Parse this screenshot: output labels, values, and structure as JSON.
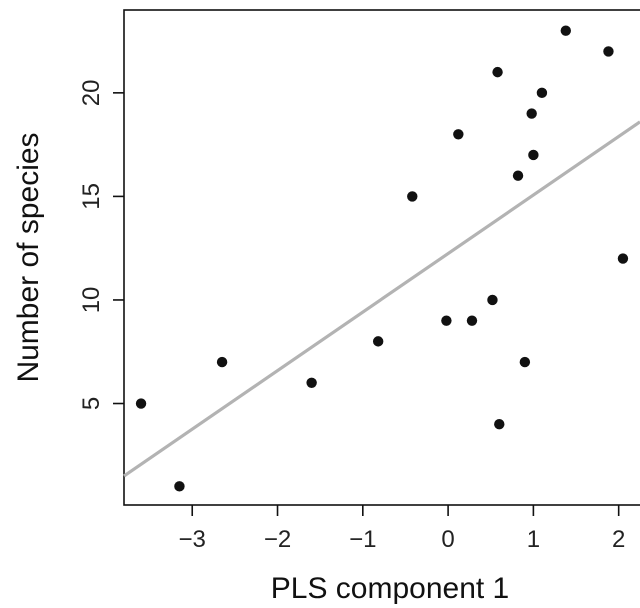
{
  "chart_data": {
    "type": "scatter",
    "title": "",
    "xlabel": "PLS component 1",
    "ylabel": "Number of species",
    "xlim": [
      -3.8,
      2.25
    ],
    "ylim": [
      0.1,
      24
    ],
    "x_ticks": [
      -3,
      -2,
      -1,
      0,
      1,
      2
    ],
    "x_tick_labels": [
      "−3",
      "−2",
      "−1",
      "0",
      "1",
      "2"
    ],
    "y_ticks": [
      5,
      10,
      15,
      20
    ],
    "y_tick_labels": [
      "5",
      "10",
      "15",
      "20"
    ],
    "grid": false,
    "point_color": "#111111",
    "points": [
      {
        "x": -3.6,
        "y": 5
      },
      {
        "x": -3.15,
        "y": 1
      },
      {
        "x": -2.65,
        "y": 7
      },
      {
        "x": -1.6,
        "y": 6
      },
      {
        "x": -0.82,
        "y": 8
      },
      {
        "x": -0.42,
        "y": 15
      },
      {
        "x": -0.02,
        "y": 9
      },
      {
        "x": 0.12,
        "y": 18
      },
      {
        "x": 0.28,
        "y": 9
      },
      {
        "x": 0.52,
        "y": 10
      },
      {
        "x": 0.58,
        "y": 21
      },
      {
        "x": 0.6,
        "y": 4
      },
      {
        "x": 0.82,
        "y": 16
      },
      {
        "x": 0.9,
        "y": 7
      },
      {
        "x": 0.98,
        "y": 19
      },
      {
        "x": 1.0,
        "y": 17
      },
      {
        "x": 1.1,
        "y": 20
      },
      {
        "x": 1.38,
        "y": 23
      },
      {
        "x": 1.88,
        "y": 22
      },
      {
        "x": 2.05,
        "y": 12
      }
    ],
    "trend_line": {
      "color": "#b3b3b3",
      "x": [
        -3.8,
        2.25
      ],
      "y": [
        1.5,
        18.6
      ]
    }
  }
}
